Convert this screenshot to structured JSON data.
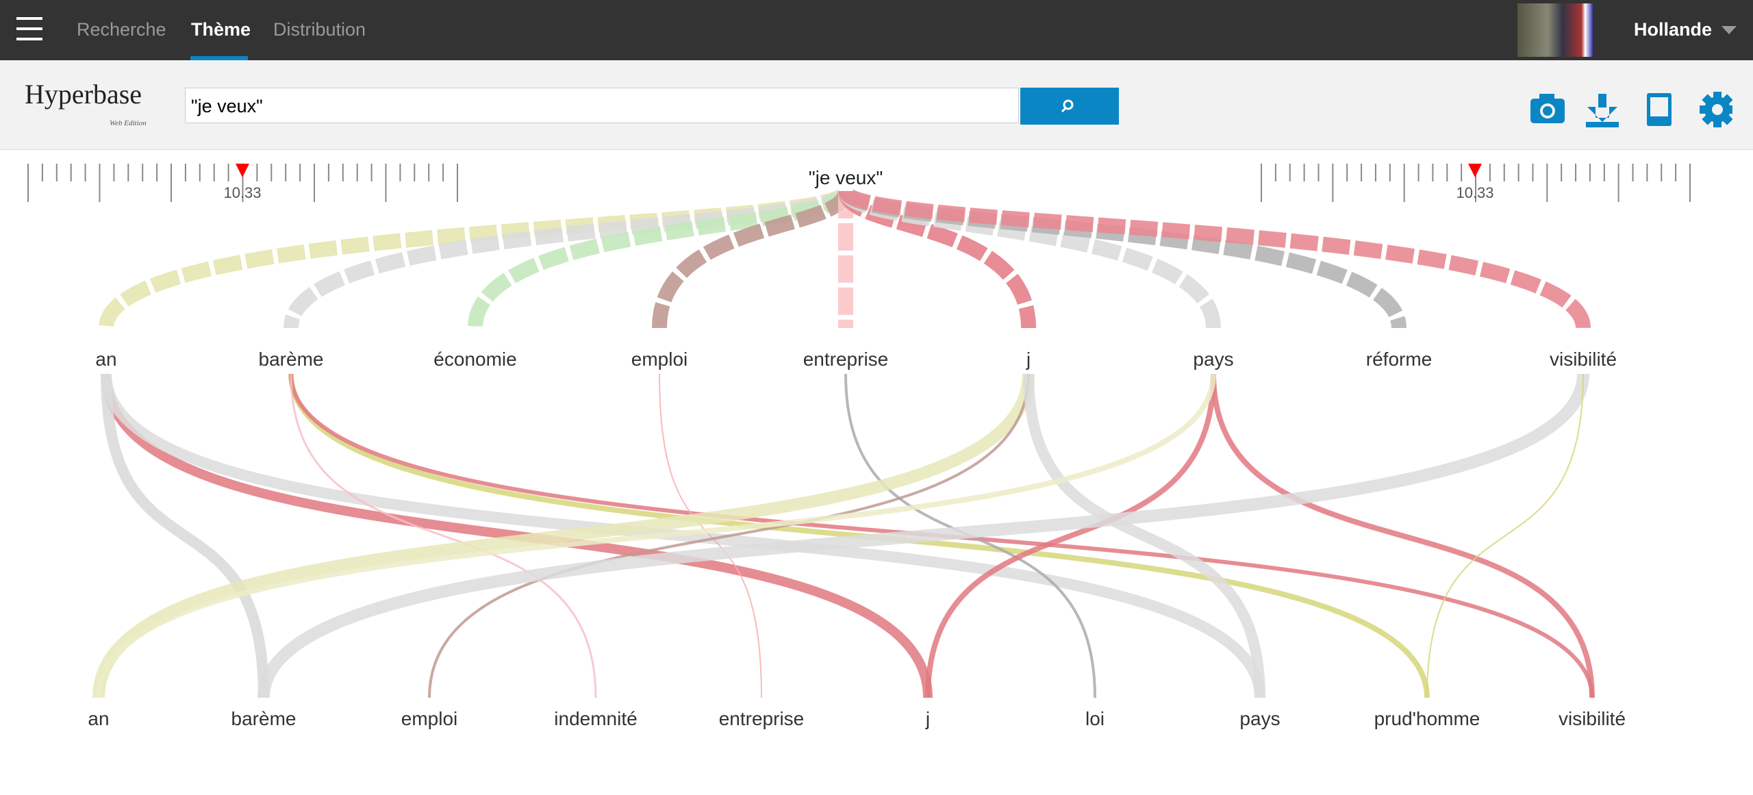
{
  "nav": {
    "items": [
      "Recherche",
      "Thème",
      "Distribution"
    ],
    "user": "Hollande"
  },
  "logo": {
    "name": "Hyperbase",
    "edition": "Web Edition"
  },
  "search": {
    "query": "\"je veux\""
  },
  "sliders": [
    {
      "label": "10.33"
    },
    {
      "label": "10.33"
    }
  ],
  "graph": {
    "root": "\"je veux\"",
    "level1": [
      "an",
      "barème",
      "économie",
      "emploi",
      "entreprise",
      "j",
      "pays",
      "réforme",
      "visibilité"
    ],
    "level2": [
      "an",
      "barème",
      "emploi",
      "indemnité",
      "entreprise",
      "j",
      "loi",
      "pays",
      "prud'homme",
      "visibilité"
    ]
  }
}
